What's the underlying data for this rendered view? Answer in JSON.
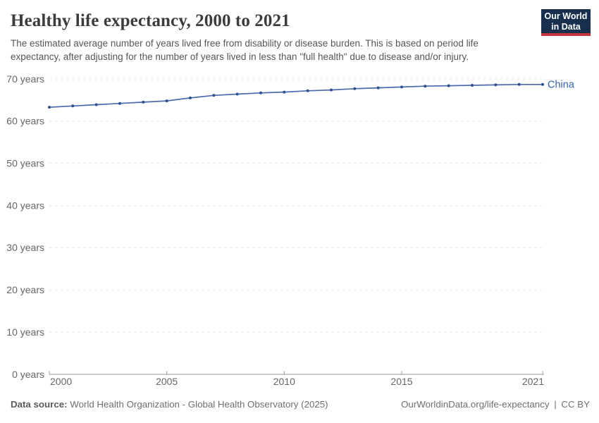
{
  "header": {
    "title": "Healthy life expectancy, 2000 to 2021",
    "subtitle": "The estimated average number of years lived free from disability or disease burden. This is based on period life expectancy, after adjusting for the number of years lived in less than \"full health\" due to disease and/or injury.",
    "logo": {
      "line1": "Our World",
      "line2": "in Data"
    }
  },
  "chart_data": {
    "type": "line",
    "title": "Healthy life expectancy, 2000 to 2021",
    "xlabel": "",
    "ylabel": "years",
    "xlim": [
      2000,
      2021
    ],
    "ylim": [
      0,
      70
    ],
    "xticks": [
      2000,
      2005,
      2010,
      2015,
      2021
    ],
    "yticks": [
      0,
      10,
      20,
      30,
      40,
      50,
      60,
      70
    ],
    "ytick_suffix": " years",
    "grid": "horizontal-dashed",
    "legend_position": "end-of-line-label",
    "x": [
      2000,
      2001,
      2002,
      2003,
      2004,
      2005,
      2006,
      2007,
      2008,
      2009,
      2010,
      2011,
      2012,
      2013,
      2014,
      2015,
      2016,
      2017,
      2018,
      2019,
      2020,
      2021
    ],
    "series": [
      {
        "name": "China",
        "values": [
          63.3,
          63.6,
          63.9,
          64.2,
          64.5,
          64.8,
          65.5,
          66.1,
          66.4,
          66.7,
          66.9,
          67.2,
          67.4,
          67.7,
          67.9,
          68.1,
          68.3,
          68.4,
          68.5,
          68.6,
          68.7,
          68.7
        ]
      }
    ]
  },
  "colors": {
    "line": "#4c6bae",
    "marker": "#2f4f93",
    "entity_label": "#3a62a6",
    "grid": "#e1e1e1",
    "axis": "#999999",
    "axis_text": "#666666",
    "logo_bg": "#18304e",
    "logo_stripe": "#c0363c"
  },
  "footer": {
    "source_label": "Data source:",
    "source_text": " World Health Organization - Global Health Observatory (2025)",
    "link_text": "OurWorldinData.org/life-expectancy",
    "separator": "|",
    "license_text": "CC BY"
  }
}
